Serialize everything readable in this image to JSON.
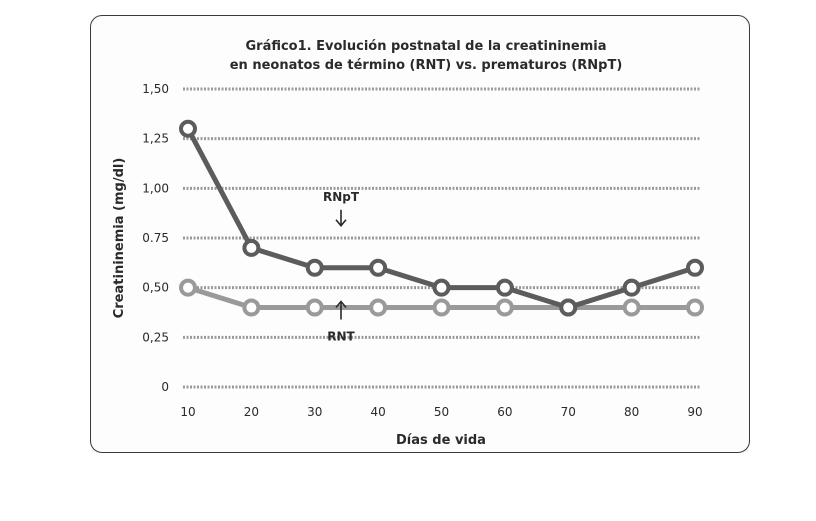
{
  "chart_data": {
    "type": "line",
    "title": [
      "Gráfico1. Evolución postnatal de la creatininemia",
      "en neonatos de término (RNT) vs. prematuros (RNpT)"
    ],
    "xlabel": "Días de vida",
    "ylabel": "Creatininemia (mg/dl)",
    "x": [
      10,
      20,
      30,
      40,
      50,
      60,
      70,
      80,
      90
    ],
    "x_ticks": [
      "10",
      "20",
      "30",
      "40",
      "50",
      "60",
      "70",
      "80",
      "90"
    ],
    "y_ticks": [
      "0",
      "0,25",
      "0,50",
      "0.75",
      "1,00",
      "1,25",
      "1,50"
    ],
    "y_tick_values": [
      0,
      0.25,
      0.5,
      0.75,
      1.0,
      1.25,
      1.5
    ],
    "ylim": [
      0,
      1.5
    ],
    "grid": true,
    "series": [
      {
        "name": "RNpT",
        "values": [
          1.3,
          0.7,
          0.6,
          0.6,
          0.5,
          0.5,
          0.4,
          0.5,
          0.6
        ],
        "color": "#5c5c5c"
      },
      {
        "name": "RNT",
        "values": [
          0.5,
          0.4,
          0.4,
          0.4,
          0.4,
          0.4,
          0.4,
          0.4,
          0.4
        ],
        "color": "#9a9a9a"
      }
    ],
    "annotations": [
      {
        "text": "RNpT",
        "series": "RNpT",
        "arrow": "down"
      },
      {
        "text": "RNT",
        "series": "RNT",
        "arrow": "up"
      }
    ]
  }
}
